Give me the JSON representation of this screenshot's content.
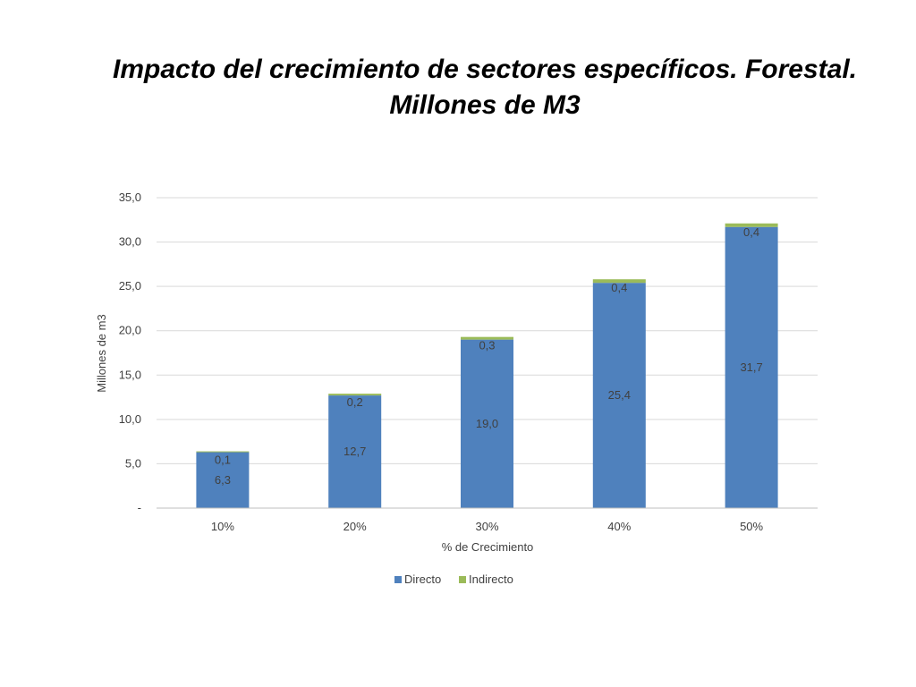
{
  "slide": {
    "title_line1": "Impacto del crecimiento de sectores específicos. Forestal.",
    "title_line2": "Millones de M3"
  },
  "chart_data": {
    "type": "bar",
    "stacked": true,
    "title": "",
    "xlabel": "% de Crecimiento",
    "ylabel": "Millones de m3",
    "categories": [
      "10%",
      "20%",
      "30%",
      "40%",
      "50%"
    ],
    "series": [
      {
        "name": "Directo",
        "values": [
          6.3,
          12.7,
          19.0,
          25.4,
          31.7
        ],
        "labels": [
          "6,3",
          "12,7",
          "19,0",
          "25,4",
          "31,7"
        ],
        "color": "#4F81BD"
      },
      {
        "name": "Indirecto",
        "values": [
          0.1,
          0.2,
          0.3,
          0.4,
          0.4
        ],
        "labels": [
          "0,1",
          "0,2",
          "0,3",
          "0,4",
          "0,4"
        ],
        "color": "#9BBB59"
      }
    ],
    "ylim": [
      0,
      35
    ],
    "yticks": [
      0,
      5,
      10,
      15,
      20,
      25,
      30,
      35
    ],
    "ytick_labels": [
      "-",
      "5,0",
      "10,0",
      "15,0",
      "20,0",
      "25,0",
      "30,0",
      "35,0"
    ],
    "grid": true,
    "legend": "bottom",
    "gridline_color": "#D9D9D9"
  }
}
